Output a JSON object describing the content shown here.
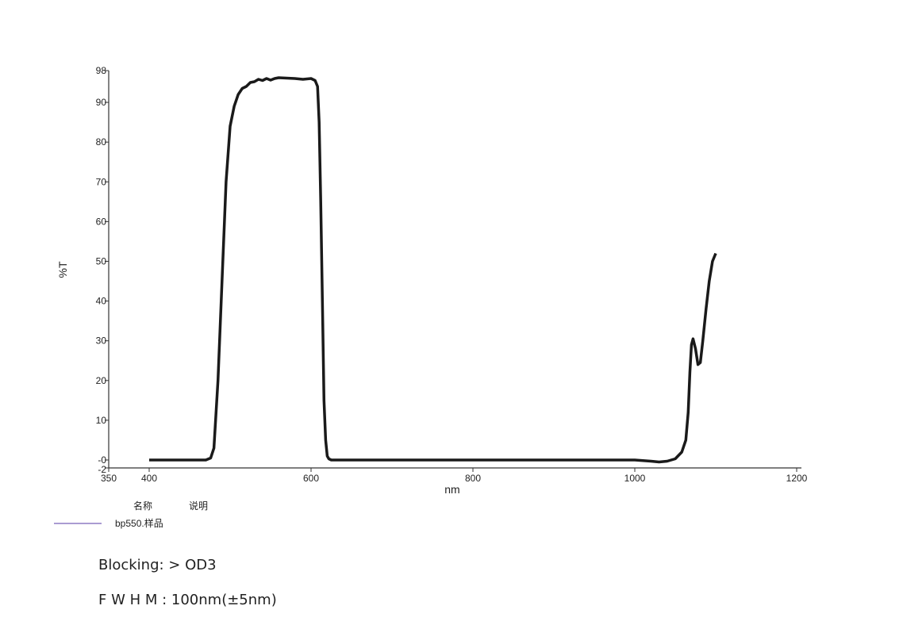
{
  "chart_data": {
    "type": "line",
    "title": "",
    "xlabel": "nm",
    "ylabel": "%T",
    "xlim": [
      350,
      1200
    ],
    "ylim": [
      -2,
      98
    ],
    "xticks": [
      350,
      400,
      600,
      800,
      1000,
      1200
    ],
    "yticks": [
      -2,
      0,
      10,
      20,
      30,
      40,
      50,
      60,
      70,
      80,
      90,
      98
    ],
    "ytick_labels": [
      "-2",
      "-0",
      "10",
      "20",
      "30",
      "40",
      "50",
      "60",
      "70",
      "80",
      "90",
      "98"
    ],
    "grid": false,
    "legend": {
      "header_name": "名称",
      "header_desc": "说明",
      "entries": [
        "bp550.样品"
      ],
      "placement": "bottom-left"
    },
    "series": [
      {
        "name": "bp550.样品",
        "color": "#1a1a1a",
        "legend_color": "#8e7cc3",
        "x": [
          400,
          470,
          476,
          480,
          485,
          490,
          495,
          500,
          505,
          510,
          515,
          520,
          525,
          530,
          535,
          540,
          545,
          550,
          555,
          560,
          570,
          580,
          590,
          600,
          605,
          608,
          610,
          612,
          614,
          616,
          618,
          620,
          622,
          625,
          630,
          700,
          800,
          900,
          1000,
          1020,
          1030,
          1040,
          1050,
          1058,
          1063,
          1066,
          1068,
          1070,
          1072,
          1075,
          1078,
          1081,
          1084,
          1088,
          1092,
          1096,
          1100
        ],
        "y": [
          0,
          0,
          0.5,
          3,
          20,
          45,
          70,
          84,
          89,
          92,
          93.5,
          94,
          95,
          95.2,
          95.8,
          95.5,
          96,
          95.6,
          96,
          96.2,
          96.1,
          96,
          95.8,
          96,
          95.5,
          94,
          85,
          65,
          40,
          15,
          5,
          1,
          0.3,
          0,
          0,
          0,
          0,
          0,
          0,
          -0.3,
          -0.5,
          -0.3,
          0.3,
          2,
          5,
          12,
          22,
          29,
          30.5,
          28,
          24,
          24.5,
          30,
          38,
          45,
          50,
          52
        ]
      }
    ]
  },
  "notes": {
    "blocking": "Blocking:  > OD3",
    "fwhm": "F W H M : 100nm(±5nm)"
  }
}
